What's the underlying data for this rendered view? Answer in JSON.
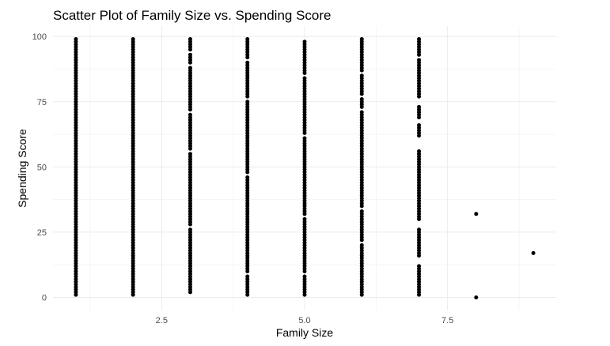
{
  "chart_data": {
    "type": "scatter",
    "title": "Scatter Plot of Family Size vs. Spending Score",
    "xlabel": "Family Size",
    "ylabel": "Spending Score",
    "xlim": [
      0.6,
      9.4
    ],
    "ylim": [
      -5,
      104
    ],
    "x_ticks": [
      2.5,
      5.0,
      7.5
    ],
    "x_tick_labels": [
      "2.5",
      "5.0",
      "7.5"
    ],
    "y_ticks": [
      0,
      25,
      50,
      75,
      100
    ],
    "y_tick_labels": [
      "0",
      "25",
      "50",
      "75",
      "100"
    ],
    "grid": true,
    "legend": "none",
    "point_color": "#000000",
    "columns": [
      {
        "x": 1,
        "min": 1,
        "max": 99,
        "gaps": []
      },
      {
        "x": 2,
        "min": 1,
        "max": 99,
        "gaps": []
      },
      {
        "x": 3,
        "min": 2,
        "max": 99,
        "gaps": [
          [
            93,
            95
          ],
          [
            88,
            90
          ],
          [
            70,
            72
          ],
          [
            55,
            57
          ],
          [
            26,
            28
          ]
        ]
      },
      {
        "x": 4,
        "min": 1,
        "max": 99,
        "gaps": [
          [
            90,
            92
          ],
          [
            75,
            77
          ],
          [
            46,
            48
          ],
          [
            23,
            24
          ],
          [
            8,
            10
          ]
        ]
      },
      {
        "x": 5,
        "min": 1,
        "max": 98,
        "gaps": [
          [
            84,
            86
          ],
          [
            61,
            63
          ],
          [
            30,
            32
          ],
          [
            8,
            10
          ]
        ]
      },
      {
        "x": 6,
        "min": 1,
        "max": 99,
        "gaps": [
          [
            85,
            87
          ],
          [
            76,
            78
          ],
          [
            71,
            73
          ],
          [
            33,
            35
          ],
          [
            20,
            22
          ]
        ]
      },
      {
        "x": 7,
        "min": 1,
        "max": 99,
        "gaps": [
          [
            95,
            96
          ],
          [
            91,
            93
          ],
          [
            73,
            77
          ],
          [
            66,
            69
          ],
          [
            56,
            62
          ],
          [
            26,
            30
          ],
          [
            12,
            16
          ]
        ]
      }
    ],
    "points": [
      {
        "x": 8,
        "y": 32
      },
      {
        "x": 8,
        "y": 0
      },
      {
        "x": 9,
        "y": 17
      }
    ]
  }
}
